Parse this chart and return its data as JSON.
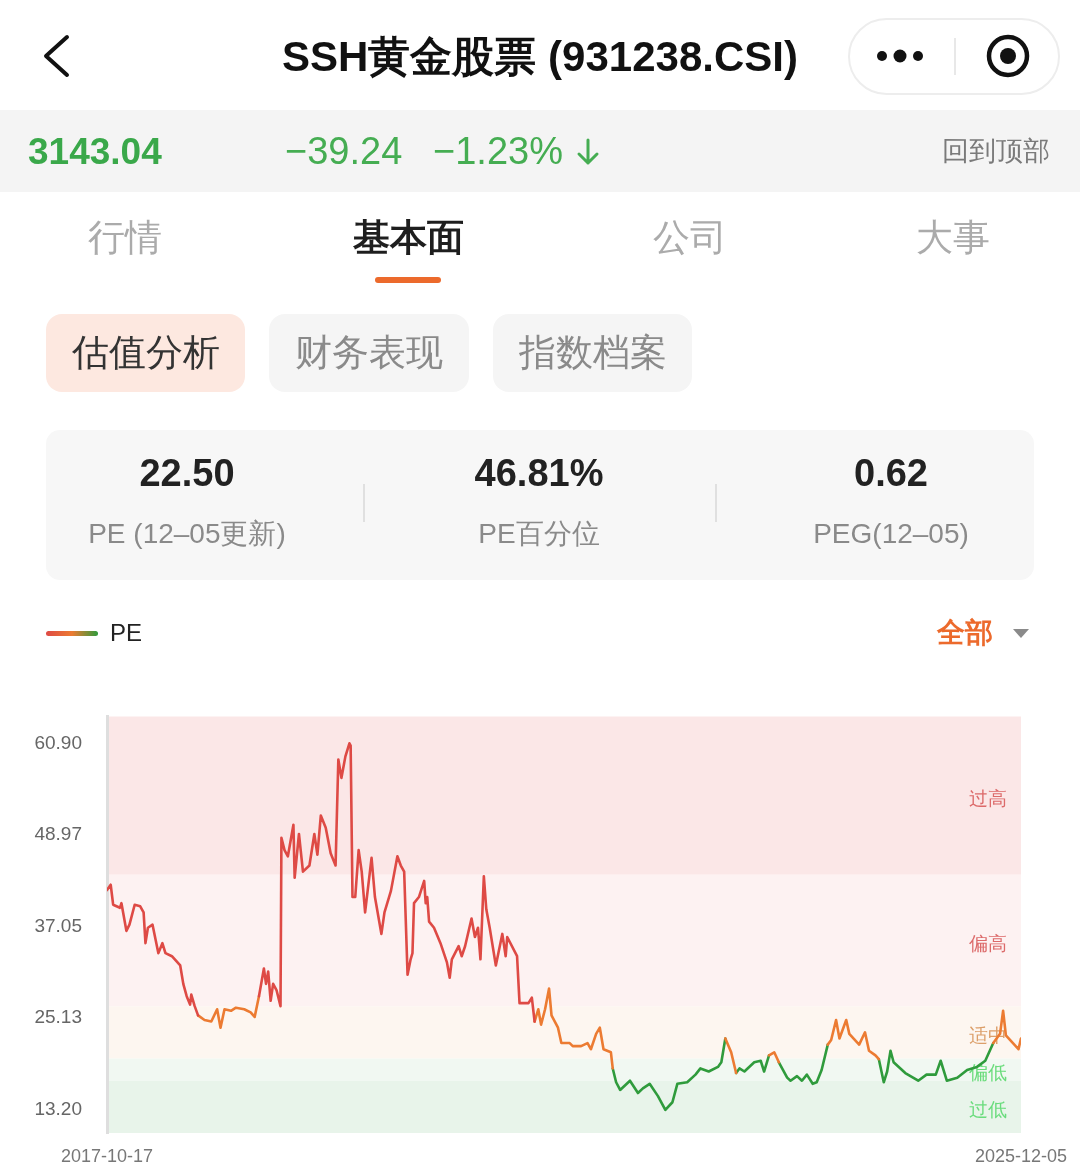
{
  "chart_data": [
    {
      "type": "other",
      "title": "SSH黄金股票 (931238.CSI)",
      "annotations": [
        "3143.04",
        "−39.24",
        "−1.23%",
        "回到顶部",
        "行情",
        "基本面",
        "公司",
        "大事",
        "估值分析",
        "财务表现",
        "指数档案",
        "22.50",
        "PE (12–05更新)",
        "46.81%",
        "PE百分位",
        "0.62",
        "PEG(12–05)"
      ]
    },
    {
      "type": "line",
      "x": [
        "2017-10-17",
        "2017-10-29",
        "2017-11-06",
        "2017-11-28",
        "2017-12-03",
        "2017-12-19",
        "2017-12-29",
        "2018-01-15",
        "2018-02-02",
        "2018-02-13",
        "2018-02-19",
        "2018-02-27",
        "2018-03-14",
        "2018-04-02",
        "2018-04-15",
        "2018-04-25",
        "2018-05-16",
        "2018-06-12",
        "2018-06-22",
        "2018-07-03",
        "2018-07-14",
        "2018-07-18",
        "2018-07-29",
        "2018-08-09",
        "2018-08-30",
        "2018-09-21",
        "2018-10-10",
        "2018-10-21",
        "2018-11-03",
        "2018-11-24",
        "2018-12-10",
        "2019-01-06",
        "2019-01-27",
        "2019-02-09",
        "2019-02-23",
        "2019-03-11",
        "2019-03-18",
        "2019-03-25",
        "2019-04-02",
        "2019-04-10",
        "2019-04-21",
        "2019-05-04",
        "2019-05-07",
        "2019-05-17",
        "2019-05-28",
        "2019-06-15",
        "2019-06-19",
        "2019-07-03",
        "2019-07-16",
        "2019-08-06",
        "2019-08-22",
        "2019-09-01",
        "2019-09-12",
        "2019-09-28",
        "2019-10-14",
        "2019-10-30",
        "2019-11-08",
        "2019-11-18",
        "2019-12-01",
        "2019-12-14",
        "2019-12-18",
        "2019-12-24",
        "2020-01-02",
        "2020-01-13",
        "2020-01-23",
        "2020-02-03",
        "2020-02-24",
        "2020-03-06",
        "2020-03-27",
        "2020-04-06",
        "2020-04-27",
        "2020-05-18",
        "2020-05-29",
        "2020-06-09",
        "2020-06-20",
        "2020-06-30",
        "2020-07-06",
        "2020-07-11",
        "2020-07-27",
        "2020-08-13",
        "2020-08-18",
        "2020-08-23",
        "2020-08-29",
        "2020-09-14",
        "2020-10-05",
        "2020-10-26",
        "2020-11-04",
        "2020-11-11",
        "2020-12-03",
        "2020-12-13",
        "2020-12-24",
        "2021-01-14",
        "2021-01-25",
        "2021-02-04",
        "2021-02-12",
        "2021-02-23",
        "2021-03-03",
        "2021-03-14",
        "2021-04-03",
        "2021-04-24",
        "2021-05-05",
        "2021-05-10",
        "2021-06-11",
        "2021-06-19",
        "2021-07-18",
        "2021-07-29",
        "2021-08-07",
        "2021-08-19",
        "2021-08-28",
        "2021-09-10",
        "2021-09-23",
        "2021-10-01",
        "2021-10-22",
        "2021-11-02",
        "2021-11-29",
        "2021-12-09",
        "2022-01-05",
        "2022-01-26",
        "2022-02-06",
        "2022-02-23",
        "2022-03-07",
        "2022-03-19",
        "2022-04-12",
        "2022-04-18",
        "2022-04-29",
        "2022-05-12",
        "2022-06-13",
        "2022-07-09",
        "2022-07-25",
        "2022-08-16",
        "2022-09-12",
        "2022-10-06",
        "2022-10-29",
        "2022-11-14",
        "2022-12-16",
        "2023-01-12",
        "2023-01-28",
        "2023-02-24",
        "2023-03-26",
        "2023-04-06",
        "2023-04-19",
        "2023-05-08",
        "2023-05-24",
        "2023-06-04",
        "2023-06-20",
        "2023-07-22",
        "2023-08-12",
        "2023-08-23",
        "2023-09-08",
        "2023-09-25",
        "2023-10-10",
        "2023-11-06",
        "2023-11-17",
        "2023-12-08",
        "2023-12-24",
        "2024-01-09",
        "2024-01-28",
        "2024-02-10",
        "2024-02-26",
        "2024-03-17",
        "2024-03-28",
        "2024-04-13",
        "2024-04-24",
        "2024-05-16",
        "2024-05-26",
        "2024-06-27",
        "2024-07-16",
        "2024-07-29",
        "2024-08-19",
        "2024-08-30",
        "2024-09-15",
        "2024-09-26",
        "2024-10-07",
        "2024-10-17",
        "2024-11-24",
        "2025-01-05",
        "2025-02-01",
        "2025-03-03",
        "2025-03-19",
        "2025-04-08",
        "2025-05-12",
        "2025-06-13",
        "2025-07-15",
        "2025-08-11",
        "2025-09-06",
        "2025-09-28",
        "2025-10-08",
        "2025-10-17",
        "2025-11-09",
        "2025-11-27",
        "2025-12-05"
      ],
      "series": [
        {
          "name": "PE",
          "color": "#de4a45",
          "values": [
            41.8,
            42.5,
            39.9,
            39.5,
            40.1,
            36.5,
            37.3,
            39.9,
            39.7,
            38.9,
            34.9,
            36.9,
            37.3,
            33.6,
            34.9,
            33.6,
            33.2,
            32.0,
            29.6,
            28.0,
            26.9,
            28.2,
            26.7,
            25.5,
            null,
            null,
            null,
            null,
            null,
            null,
            null,
            null,
            null,
            null,
            28.0,
            31.6,
            29.6,
            31.2,
            27.4,
            29.6,
            28.8,
            26.7,
            48.6,
            47.0,
            46.2,
            50.3,
            43.4,
            49.1,
            44.2,
            45.0,
            49.1,
            46.4,
            51.5,
            49.9,
            46.6,
            45.0,
            58.8,
            56.4,
            59.2,
            60.9,
            60.6,
            40.9,
            40.9,
            47.0,
            44.2,
            38.9,
            46.0,
            40.9,
            36.1,
            38.9,
            41.7,
            46.2,
            45.0,
            44.2,
            30.8,
            32.8,
            33.6,
            40.1,
            40.9,
            43.0,
            40.1,
            40.9,
            37.7,
            36.9,
            34.9,
            32.4,
            30.4,
            32.8,
            34.5,
            33.2,
            34.5,
            38.1,
            35.7,
            36.9,
            32.8,
            43.6,
            39.3,
            36.9,
            32.0,
            36.1,
            33.2,
            35.7,
            33.2,
            27.1,
            27.1,
            27.8,
            24.7,
            null,
            null,
            null,
            null,
            null,
            null,
            null,
            null,
            null,
            null,
            null,
            null,
            null,
            null,
            null,
            null,
            null,
            null,
            null,
            null,
            null,
            null,
            null,
            null,
            null,
            null,
            null,
            null,
            null,
            null,
            null,
            null,
            null,
            null,
            null,
            null,
            null,
            null,
            null,
            null,
            null,
            null,
            null,
            null,
            null,
            null,
            null,
            null,
            null,
            null,
            null,
            null,
            null,
            null,
            null,
            null,
            null,
            null,
            null,
            null,
            null,
            null,
            null,
            null,
            null,
            null,
            null,
            null,
            null,
            null,
            null,
            null,
            null,
            null,
            null,
            null,
            null,
            null,
            null,
            null,
            null,
            null,
            null,
            null
          ]
        },
        {
          "color": "#ec7b32",
          "values": [
            null,
            null,
            null,
            null,
            null,
            null,
            null,
            null,
            null,
            null,
            null,
            null,
            null,
            null,
            null,
            null,
            null,
            null,
            null,
            null,
            null,
            null,
            null,
            25.5,
            24.9,
            24.7,
            26.3,
            23.9,
            26.3,
            26.1,
            26.5,
            26.3,
            25.9,
            25.3,
            28.0,
            null,
            null,
            null,
            null,
            null,
            null,
            null,
            null,
            null,
            null,
            null,
            null,
            null,
            null,
            null,
            null,
            null,
            null,
            null,
            null,
            null,
            null,
            null,
            null,
            null,
            null,
            null,
            null,
            null,
            null,
            null,
            null,
            null,
            null,
            null,
            null,
            null,
            null,
            null,
            null,
            null,
            null,
            null,
            null,
            null,
            null,
            null,
            null,
            null,
            null,
            null,
            null,
            null,
            null,
            null,
            null,
            null,
            null,
            null,
            null,
            null,
            null,
            null,
            null,
            null,
            null,
            null,
            null,
            null,
            null,
            null,
            24.7,
            26.3,
            24.3,
            26.3,
            29.0,
            25.5,
            23.9,
            21.9,
            21.9,
            21.5,
            21.5,
            21.9,
            21.1,
            23.1,
            23.9,
            21.1,
            20.7,
            18.6,
            null,
            null,
            null,
            null,
            null,
            null,
            null,
            null,
            null,
            null,
            null,
            null,
            null,
            null,
            null,
            null,
            22.5,
            20.7,
            18.0,
            null,
            null,
            null,
            null,
            null,
            20.3,
            20.7,
            19.4,
            null,
            null,
            null,
            null,
            null,
            null,
            null,
            null,
            21.7,
            22.3,
            24.9,
            22.5,
            24.9,
            23.1,
            21.7,
            23.3,
            20.9,
            20.3,
            19.8,
            null,
            null,
            null,
            null,
            null,
            null,
            null,
            null,
            null,
            null,
            null,
            null,
            null,
            null,
            21.9,
            23.1,
            26.1,
            22.9,
            21.9,
            21.1,
            22.5
          ]
        },
        {
          "color": "#2f9b3c",
          "values": [
            null,
            null,
            null,
            null,
            null,
            null,
            null,
            null,
            null,
            null,
            null,
            null,
            null,
            null,
            null,
            null,
            null,
            null,
            null,
            null,
            null,
            null,
            null,
            null,
            null,
            null,
            null,
            null,
            null,
            null,
            null,
            null,
            null,
            null,
            null,
            null,
            null,
            null,
            null,
            null,
            null,
            null,
            null,
            null,
            null,
            null,
            null,
            null,
            null,
            null,
            null,
            null,
            null,
            null,
            null,
            null,
            null,
            null,
            null,
            null,
            null,
            null,
            null,
            null,
            null,
            null,
            null,
            null,
            null,
            null,
            null,
            null,
            null,
            null,
            null,
            null,
            null,
            null,
            null,
            null,
            null,
            null,
            null,
            null,
            null,
            null,
            null,
            null,
            null,
            null,
            null,
            null,
            null,
            null,
            null,
            null,
            null,
            null,
            null,
            null,
            null,
            null,
            null,
            null,
            null,
            null,
            null,
            null,
            null,
            null,
            null,
            null,
            null,
            null,
            null,
            null,
            null,
            null,
            null,
            null,
            null,
            null,
            null,
            18.6,
            16.8,
            15.8,
            17.0,
            15.4,
            16.0,
            16.6,
            15.0,
            13.2,
            14.2,
            16.6,
            16.8,
            17.8,
            18.6,
            18.2,
            18.8,
            19.4,
            22.5,
            null,
            18.0,
            18.6,
            18.2,
            19.4,
            19.6,
            18.2,
            20.3,
            null,
            19.4,
            17.4,
            17.0,
            17.6,
            17.0,
            17.8,
            16.6,
            16.8,
            18.4,
            21.7,
            null,
            null,
            null,
            null,
            null,
            null,
            null,
            null,
            null,
            19.8,
            16.8,
            18.2,
            20.9,
            19.4,
            18.0,
            17.0,
            17.8,
            17.8,
            19.6,
            17.0,
            17.4,
            18.4,
            18.8,
            19.6,
            21.9,
            null,
            null,
            null,
            null,
            null,
            null
          ]
        }
      ],
      "xlim": [
        "2017-10-17",
        "2025-12-05"
      ],
      "xticks": [
        "2017-10-17",
        "2025-12-05"
      ],
      "ylim": [
        10.2,
        64.4
      ],
      "yticks": [
        {
          "value": 13.2,
          "label": "13.20"
        },
        25.13,
        37.05,
        48.97,
        {
          "value": 60.9,
          "label": "60.90"
        }
      ],
      "bands": [
        {
          "axis": "y",
          "from": 43.8,
          "to": 64.4,
          "label": "过高",
          "color": "#fbe7e7"
        },
        {
          "axis": "y",
          "from": 26.7,
          "to": 43.8,
          "label": "偏高",
          "color": "#fdf2f2"
        },
        {
          "axis": "y",
          "from": 19.9,
          "to": 26.7,
          "label": "适中",
          "color": "#fdf6f0"
        },
        {
          "axis": "y",
          "from": 17.0,
          "to": 19.9,
          "label": "偏低",
          "color": "#f1f8f2"
        },
        {
          "axis": "y",
          "from": 10.2,
          "to": 17.0,
          "label": "过低",
          "color": "#e8f4ea"
        }
      ],
      "legend": "top left",
      "marker": "none",
      "line_style": "solid",
      "annotations": [
        "全部"
      ]
    }
  ]
}
